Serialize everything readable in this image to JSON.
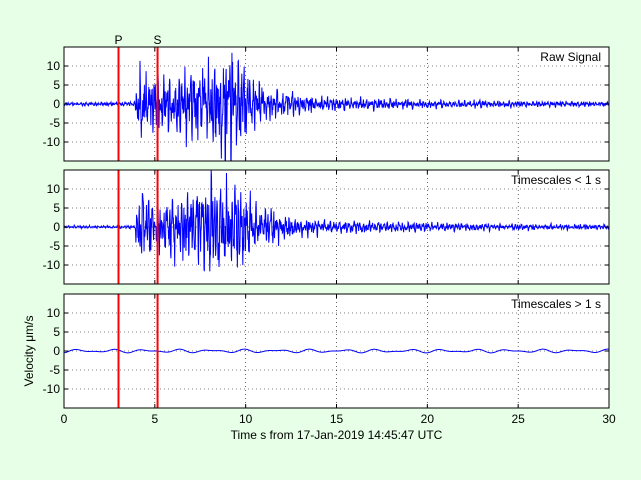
{
  "chart_data": [
    {
      "type": "line",
      "panel_label": "Raw Signal",
      "xlim": [
        0,
        30
      ],
      "ylim": [
        -15,
        15
      ],
      "x_ticks": [
        0,
        5,
        10,
        15,
        20,
        25,
        30
      ],
      "y_ticks": [
        10,
        5,
        0,
        -5,
        -10
      ],
      "y_tick_labels": [
        "10",
        "5",
        "0",
        "-5",
        "-10"
      ],
      "grid": true,
      "series": [
        {
          "color": "#0000ff",
          "amplitude_envelope_um_s": [
            [
              0,
              0.4
            ],
            [
              3,
              0.4
            ],
            [
              3.9,
              0.6
            ],
            [
              4.1,
              8
            ],
            [
              5,
              6
            ],
            [
              6,
              7
            ],
            [
              7,
              8
            ],
            [
              8,
              10
            ],
            [
              8.5,
              11
            ],
            [
              9,
              13
            ],
            [
              9.5,
              11
            ],
            [
              10,
              7
            ],
            [
              11,
              4
            ],
            [
              12,
              3
            ],
            [
              13,
              2
            ],
            [
              15,
              1.5
            ],
            [
              17,
              1.3
            ],
            [
              20,
              1
            ],
            [
              25,
              0.7
            ],
            [
              30,
              0.5
            ]
          ]
        }
      ],
      "vertical_markers": [
        {
          "label": "P",
          "x": 3.0,
          "color": "#ff0000"
        },
        {
          "label": "S",
          "x": 5.15,
          "color": "#ff0000"
        }
      ]
    },
    {
      "type": "line",
      "panel_label": "Timescales < 1 s",
      "xlim": [
        0,
        30
      ],
      "ylim": [
        -15,
        15
      ],
      "x_ticks": [
        0,
        5,
        10,
        15,
        20,
        25,
        30
      ],
      "y_ticks": [
        10,
        5,
        0,
        -5,
        -10
      ],
      "y_tick_labels": [
        "10",
        "5",
        "0",
        "-5",
        "-10"
      ],
      "grid": true,
      "series": [
        {
          "color": "#0000ff",
          "amplitude_envelope_um_s": [
            [
              0,
              0.3
            ],
            [
              3,
              0.3
            ],
            [
              3.9,
              0.5
            ],
            [
              4.1,
              8
            ],
            [
              5,
              6
            ],
            [
              6,
              7
            ],
            [
              7,
              8
            ],
            [
              8,
              10
            ],
            [
              8.5,
              11
            ],
            [
              9,
              13
            ],
            [
              9.5,
              11
            ],
            [
              10,
              7
            ],
            [
              11,
              4
            ],
            [
              12,
              3
            ],
            [
              13,
              2
            ],
            [
              15,
              1.5
            ],
            [
              17,
              1.3
            ],
            [
              20,
              1
            ],
            [
              25,
              0.7
            ],
            [
              30,
              0.5
            ]
          ]
        }
      ],
      "vertical_markers": [
        {
          "x": 3.0,
          "color": "#ff0000"
        },
        {
          "x": 5.15,
          "color": "#ff0000"
        }
      ]
    },
    {
      "type": "line",
      "panel_label": "Timescales > 1 s",
      "ylabel": "Velocity μm/s",
      "xlabel": "Time s from 17-Jan-2019 14:45:47 UTC",
      "xlim": [
        0,
        30
      ],
      "ylim": [
        -15,
        15
      ],
      "x_ticks": [
        0,
        5,
        10,
        15,
        20,
        25,
        30
      ],
      "x_tick_labels": [
        "0",
        "5",
        "10",
        "15",
        "20",
        "25",
        "30"
      ],
      "y_ticks": [
        10,
        5,
        0,
        -5,
        -10
      ],
      "y_tick_labels": [
        "10",
        "5",
        "0",
        "-5",
        "-10"
      ],
      "grid": true,
      "series": [
        {
          "color": "#0000ff",
          "amplitude_envelope_um_s": [
            [
              0,
              0.5
            ],
            [
              30,
              0.5
            ]
          ]
        }
      ],
      "vertical_markers": [
        {
          "x": 3.0,
          "color": "#ff0000"
        },
        {
          "x": 5.15,
          "color": "#ff0000"
        }
      ]
    }
  ]
}
